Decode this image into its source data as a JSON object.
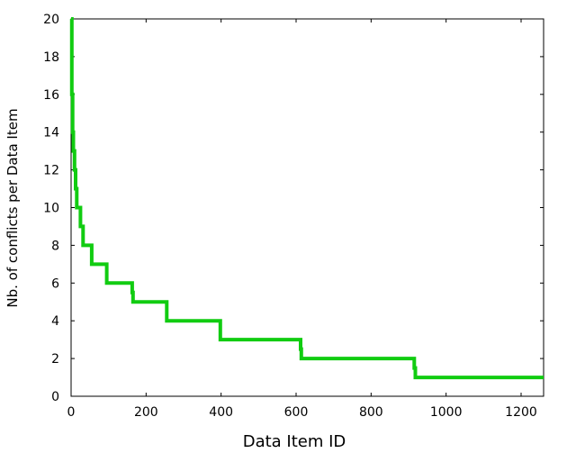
{
  "chart_data": {
    "type": "line",
    "title": "",
    "xlabel": "Data Item ID",
    "ylabel": "Nb. of conflicts per Data Item",
    "xlim": [
      0,
      1260
    ],
    "ylim": [
      0,
      20
    ],
    "xticks": [
      0,
      200,
      400,
      600,
      800,
      1000,
      1200
    ],
    "yticks": [
      0,
      2,
      4,
      6,
      8,
      10,
      12,
      14,
      16,
      18,
      20
    ],
    "xtick_labels": [
      "0",
      "200",
      "400",
      "600",
      "800",
      "1000",
      "1200"
    ],
    "ytick_labels": [
      "0",
      "2",
      "4",
      "6",
      "8",
      "10",
      "12",
      "14",
      "16",
      "18",
      "20"
    ],
    "grid": false,
    "legend": false,
    "line_color": "#11cc11",
    "series": [
      {
        "step": true,
        "points": [
          [
            0,
            20
          ],
          [
            2,
            16
          ],
          [
            4,
            14
          ],
          [
            6,
            13
          ],
          [
            9,
            12
          ],
          [
            12,
            11
          ],
          [
            15,
            10
          ],
          [
            25,
            9
          ],
          [
            32,
            8
          ],
          [
            55,
            7
          ],
          [
            95,
            6
          ],
          [
            163,
            5.5
          ],
          [
            165,
            5
          ],
          [
            255,
            4
          ],
          [
            398,
            3
          ],
          [
            612,
            2.5
          ],
          [
            614,
            2
          ],
          [
            915,
            1.5
          ],
          [
            918,
            1
          ],
          [
            1260,
            1
          ]
        ]
      }
    ]
  }
}
